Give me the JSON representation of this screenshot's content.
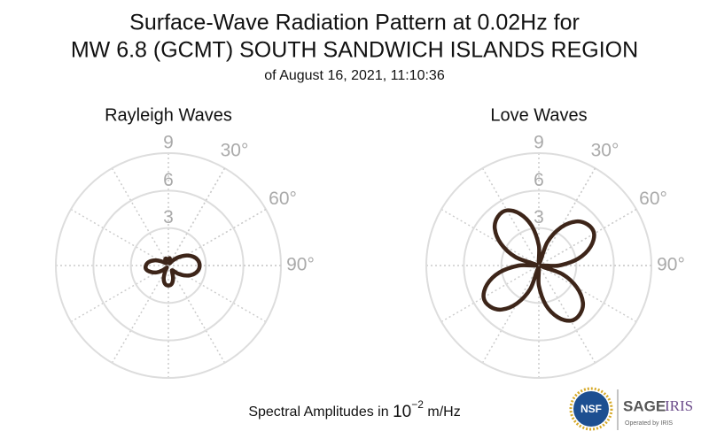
{
  "title": [
    "Surface-Wave Radiation Pattern at 0.02Hz for",
    "MW 6.8 (GCMT) SOUTH SANDWICH ISLANDS REGION"
  ],
  "subtitle": "of August 16, 2021, 11:10:36",
  "footer": {
    "text": "Spectral Amplitudes in",
    "base": "10",
    "exponent": "−2",
    "unit": "m/Hz"
  },
  "logo": {
    "nsf": "NSF",
    "sage": "SAGE",
    "iris": "IRIS",
    "operated": "Operated by IRIS"
  },
  "chart_data": [
    {
      "type": "polar",
      "title": "Rayleigh Waves",
      "color": "#3d2519",
      "rlim": [
        0,
        9
      ],
      "rticks": [
        3,
        6,
        9
      ],
      "thetaticks": [
        {
          "value": 30,
          "label": "30°"
        },
        {
          "value": 60,
          "label": "60°"
        },
        {
          "value": 90,
          "label": "90°"
        }
      ],
      "theta": [
        0,
        10,
        20,
        30,
        40,
        50,
        60,
        70,
        80,
        90,
        100,
        110,
        120,
        130,
        140,
        150,
        160,
        170,
        180,
        190,
        200,
        210,
        220,
        230,
        240,
        250,
        260,
        270,
        280,
        290,
        300,
        310,
        320,
        330,
        340,
        350
      ],
      "r": [
        0.5,
        0.6,
        0.4,
        0.2,
        0.5,
        1.0,
        1.6,
        2.1,
        2.4,
        2.5,
        2.4,
        2.1,
        1.6,
        1.0,
        0.5,
        0.6,
        1.1,
        1.5,
        1.6,
        1.5,
        1.1,
        0.5,
        0.2,
        0.6,
        1.1,
        1.5,
        1.8,
        1.8,
        1.6,
        1.2,
        0.7,
        0.3,
        0.3,
        0.5,
        0.6,
        0.5
      ]
    },
    {
      "type": "polar",
      "title": "Love Waves",
      "color": "#3d2519",
      "rlim": [
        0,
        9
      ],
      "rticks": [
        3,
        6,
        9
      ],
      "thetaticks": [
        {
          "value": 30,
          "label": "30°"
        },
        {
          "value": 60,
          "label": "60°"
        },
        {
          "value": 90,
          "label": "90°"
        }
      ],
      "theta": [
        0,
        10,
        20,
        30,
        40,
        50,
        60,
        70,
        80,
        90,
        100,
        110,
        120,
        130,
        140,
        150,
        160,
        170,
        180,
        190,
        200,
        210,
        220,
        230,
        240,
        250,
        260,
        270,
        280,
        290,
        300,
        310,
        320,
        330,
        340,
        350
      ],
      "r": [
        1.6,
        0.2,
        2.0,
        3.5,
        4.6,
        5.1,
        5.1,
        4.4,
        3.2,
        1.6,
        0.2,
        2.0,
        3.5,
        4.6,
        5.1,
        5.1,
        4.4,
        3.2,
        1.6,
        0.2,
        2.0,
        3.5,
        4.6,
        5.1,
        5.1,
        4.4,
        3.2,
        1.6,
        0.2,
        2.0,
        3.5,
        4.6,
        5.1,
        5.1,
        4.4,
        3.2
      ]
    }
  ]
}
